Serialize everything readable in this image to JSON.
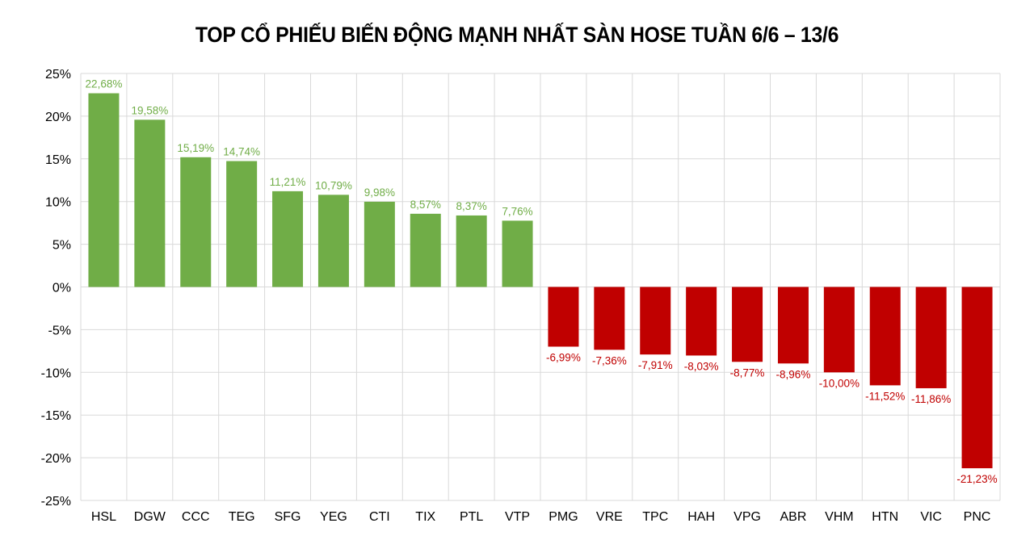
{
  "chart_data": {
    "type": "bar",
    "title": "TOP CỔ PHIẾU BIẾN ĐỘNG MẠNH NHẤT SÀN HOSE TUẦN 6/6 – 13/6",
    "xlabel": "",
    "ylabel": "",
    "ylim": [
      -25,
      25
    ],
    "yticks": [
      25,
      20,
      15,
      10,
      5,
      0,
      -5,
      -10,
      -15,
      -20,
      -25
    ],
    "ytick_labels": [
      "25%",
      "20%",
      "15%",
      "10%",
      "5%",
      "0%",
      "-5%",
      "-10%",
      "-15%",
      "-20%",
      "-25%"
    ],
    "grid": true,
    "categories": [
      "HSL",
      "DGW",
      "CCC",
      "TEG",
      "SFG",
      "YEG",
      "CTI",
      "TIX",
      "PTL",
      "VTP",
      "PMG",
      "VRE",
      "TPC",
      "HAH",
      "VPG",
      "ABR",
      "VHM",
      "HTN",
      "VIC",
      "PNC"
    ],
    "values": [
      22.68,
      19.58,
      15.19,
      14.74,
      11.21,
      10.79,
      9.98,
      8.57,
      8.37,
      7.76,
      -6.99,
      -7.36,
      -7.91,
      -8.03,
      -8.77,
      -8.96,
      -10.0,
      -11.52,
      -11.86,
      -21.23
    ],
    "data_labels": [
      "22,68%",
      "19,58%",
      "15,19%",
      "14,74%",
      "11,21%",
      "10,79%",
      "9,98%",
      "8,57%",
      "8,37%",
      "7,76%",
      "-6,99%",
      "-7,36%",
      "-7,91%",
      "-8,03%",
      "-8,77%",
      "-8,96%",
      "-10,00%",
      "-11,52%",
      "-11,86%",
      "-21,23%"
    ],
    "colors": {
      "positive": "#70ad47",
      "negative": "#c00000",
      "grid": "#d9d9d9"
    }
  }
}
